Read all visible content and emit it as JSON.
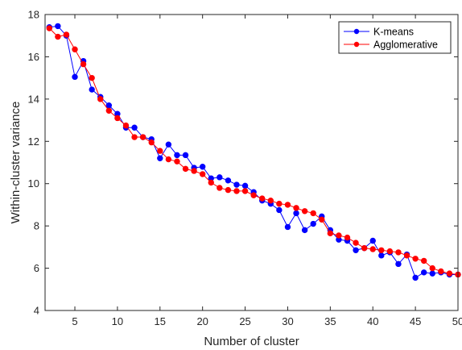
{
  "chart_data": {
    "type": "line",
    "title": "",
    "xlabel": "Number of cluster",
    "ylabel": "Within-cluster variance",
    "xlim": [
      1.5,
      50
    ],
    "ylim": [
      4,
      18
    ],
    "xticks": [
      5,
      10,
      15,
      20,
      25,
      30,
      35,
      40,
      45,
      50
    ],
    "yticks": [
      4,
      6,
      8,
      10,
      12,
      14,
      16,
      18
    ],
    "grid": false,
    "legend_position": "top-right",
    "x": [
      2,
      3,
      4,
      5,
      6,
      7,
      8,
      9,
      10,
      11,
      12,
      13,
      14,
      15,
      16,
      17,
      18,
      19,
      20,
      21,
      22,
      23,
      24,
      25,
      26,
      27,
      28,
      29,
      30,
      31,
      32,
      33,
      34,
      35,
      36,
      37,
      38,
      39,
      40,
      41,
      42,
      43,
      44,
      45,
      46,
      47,
      48,
      49,
      50
    ],
    "series": [
      {
        "name": "K-means",
        "color": "#0000ff",
        "values": [
          17.4,
          17.45,
          17.0,
          15.05,
          15.8,
          14.45,
          14.1,
          13.7,
          13.3,
          12.65,
          12.65,
          12.2,
          12.1,
          11.2,
          11.85,
          11.35,
          11.35,
          10.75,
          10.8,
          10.25,
          10.3,
          10.15,
          9.95,
          9.9,
          9.6,
          9.2,
          9.05,
          8.75,
          7.95,
          8.6,
          7.8,
          8.1,
          8.45,
          7.8,
          7.35,
          7.3,
          6.85,
          6.95,
          7.3,
          6.6,
          6.75,
          6.2,
          6.65,
          5.55,
          5.8,
          5.75,
          5.8,
          5.7,
          5.7
        ]
      },
      {
        "name": "Agglomerative",
        "color": "#ff0000",
        "values": [
          17.35,
          16.95,
          17.05,
          16.35,
          15.65,
          15.0,
          14.0,
          13.45,
          13.1,
          12.75,
          12.2,
          12.2,
          11.95,
          11.55,
          11.15,
          11.05,
          10.7,
          10.6,
          10.45,
          10.05,
          9.8,
          9.7,
          9.65,
          9.65,
          9.45,
          9.3,
          9.2,
          9.05,
          9.0,
          8.85,
          8.7,
          8.6,
          8.3,
          7.65,
          7.55,
          7.45,
          7.2,
          6.95,
          6.9,
          6.85,
          6.8,
          6.75,
          6.6,
          6.45,
          6.35,
          6.0,
          5.85,
          5.75,
          5.7
        ]
      }
    ]
  }
}
